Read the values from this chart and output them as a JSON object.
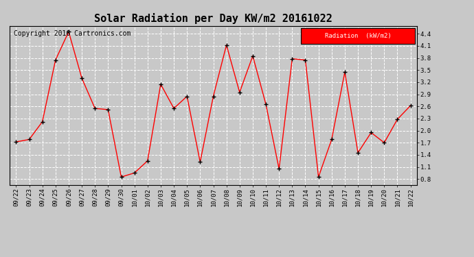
{
  "title": "Solar Radiation per Day KW/m2 20161022",
  "copyright": "Copyright 2016 Cartronics.com",
  "legend_label": "Radiation  (kW/m2)",
  "dates": [
    "09/22",
    "09/23",
    "09/24",
    "09/25",
    "09/26",
    "09/27",
    "09/28",
    "09/29",
    "09/30",
    "10/01",
    "10/02",
    "10/03",
    "10/04",
    "10/05",
    "10/06",
    "10/07",
    "10/08",
    "10/09",
    "10/10",
    "10/11",
    "10/12",
    "10/13",
    "10/14",
    "10/15",
    "10/16",
    "10/17",
    "10/18",
    "10/19",
    "10/20",
    "10/21",
    "10/22"
  ],
  "values": [
    1.72,
    1.78,
    2.22,
    3.75,
    4.45,
    3.3,
    2.55,
    2.52,
    0.85,
    0.95,
    1.25,
    3.15,
    2.55,
    2.85,
    1.22,
    2.85,
    4.12,
    2.95,
    3.85,
    2.65,
    1.05,
    3.78,
    3.75,
    0.85,
    1.78,
    3.45,
    1.45,
    1.95,
    1.7,
    2.28,
    2.62
  ],
  "ylim": [
    0.65,
    4.6
  ],
  "yticks": [
    0.8,
    1.1,
    1.4,
    1.7,
    2.0,
    2.3,
    2.6,
    2.9,
    3.2,
    3.5,
    3.8,
    4.1,
    4.4
  ],
  "line_color": "red",
  "marker_color": "black",
  "bg_color": "#c8c8c8",
  "plot_bg_color": "#c8c8c8",
  "legend_bg": "red",
  "legend_text_color": "white",
  "grid_color": "white",
  "title_fontsize": 11,
  "copyright_fontsize": 7,
  "tick_fontsize": 6.5
}
